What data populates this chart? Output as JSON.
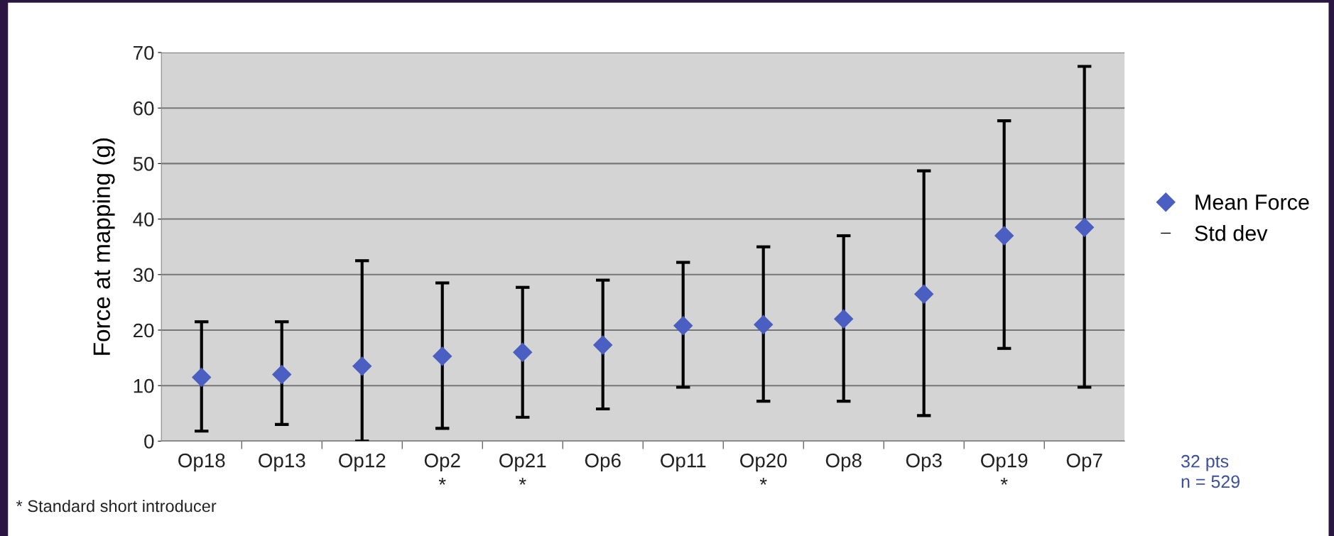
{
  "chart_data": {
    "type": "scatter",
    "ylabel": "Force at mapping (g)",
    "categories": [
      "Op18",
      "Op13",
      "Op12",
      "Op2\n*",
      "Op21\n*",
      "Op6",
      "Op11",
      "Op20\n*",
      "Op8",
      "Op3",
      "Op19\n*",
      "Op7"
    ],
    "series": [
      {
        "name": "Mean Force",
        "color": "#4a5fc1",
        "values": [
          11.5,
          12,
          13.5,
          15.3,
          16,
          17.3,
          20.8,
          21,
          22,
          26.5,
          37,
          38.5
        ],
        "errors": [
          [
            1.8,
            21.5
          ],
          [
            3,
            21.5
          ],
          [
            0,
            32.5
          ],
          [
            2.3,
            28.5
          ],
          [
            4.3,
            27.7
          ],
          [
            5.8,
            29
          ],
          [
            9.7,
            32.2
          ],
          [
            7.2,
            35
          ],
          [
            7.2,
            37
          ],
          [
            4.6,
            48.7
          ],
          [
            16.7,
            57.7
          ],
          [
            9.7,
            67.5
          ]
        ]
      }
    ],
    "marker": "diamond",
    "ylim": [
      0,
      70
    ],
    "yticks": [
      0,
      10,
      20,
      30,
      40,
      50,
      60,
      70
    ],
    "grid": "y",
    "legend": "right",
    "annotations": [
      "Std dev",
      "* Standard short introducer",
      "32 pts\nn = 529"
    ]
  }
}
